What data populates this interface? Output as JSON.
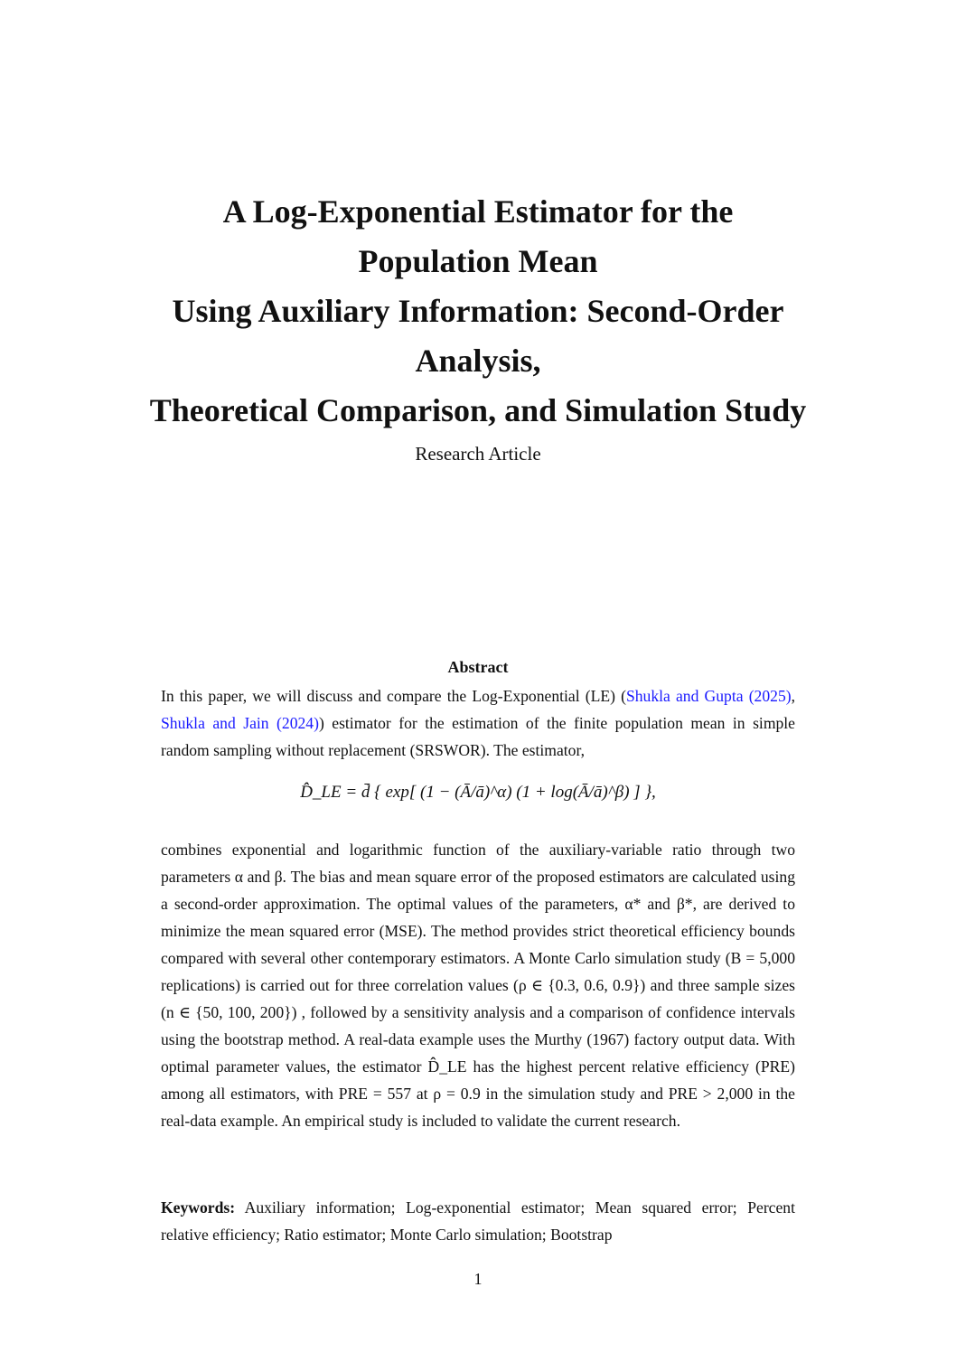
{
  "title_lines": [
    "A Log-Exponential Estimator for the",
    "Population Mean",
    "Using Auxiliary Information: Second-Order",
    "Analysis,",
    "Theoretical Comparison, and Simulation Study"
  ],
  "subtitle": "Research Article",
  "abstract": {
    "heading": "Abstract",
    "p1_a": "In this paper, we will discuss and compare the Log-Exponential (LE) (",
    "cite1": "Shukla and Gupta  (2025)",
    "p1_b": ", ",
    "cite2": "Shukla and Jain  (2024)",
    "p1_c": ") estimator for the estimation of the finite population mean in simple random sampling without replacement (SRSWOR). The estimator,",
    "equation": "D̂̂_LE = d̄ { exp[ (1 − (Ā/ā)^α) (1 + log(Ā/ā)^β) ] },",
    "p2": "combines exponential and logarithmic function of the auxiliary-variable ratio through two parameters α and β. The bias and mean square error of the proposed estimators are calculated using a second-order approximation. The optimal values of the parameters, α* and β*, are derived to minimize the mean squared error (MSE). The method provides strict theoretical efficiency bounds compared with several other contemporary estimators. A Monte Carlo simulation study (B = 5,000 replications) is carried out for three correlation values (ρ ∈ {0.3, 0.6, 0.9}) and three sample sizes (n ∈ {50, 100, 200}) , followed by a sensitivity analysis and a comparison of confidence intervals using the bootstrap method. A real-data example uses the Murthy (1967) factory output data. With optimal parameter values, the estimator D̂̂_LE has the highest percent relative efficiency (PRE) among all estimators, with PRE = 557 at ρ = 0.9 in the simulation study and PRE > 2,000 in the real-data example. An empirical study is included to validate the current research."
  },
  "keywords": {
    "label": "Keywords:",
    "text": "Auxiliary information; Log-exponential estimator; Mean squared error; Percent relative efficiency; Ratio estimator; Monte Carlo simulation; Bootstrap"
  },
  "page_number": "1",
  "colors": {
    "link": "#1a1aff"
  }
}
